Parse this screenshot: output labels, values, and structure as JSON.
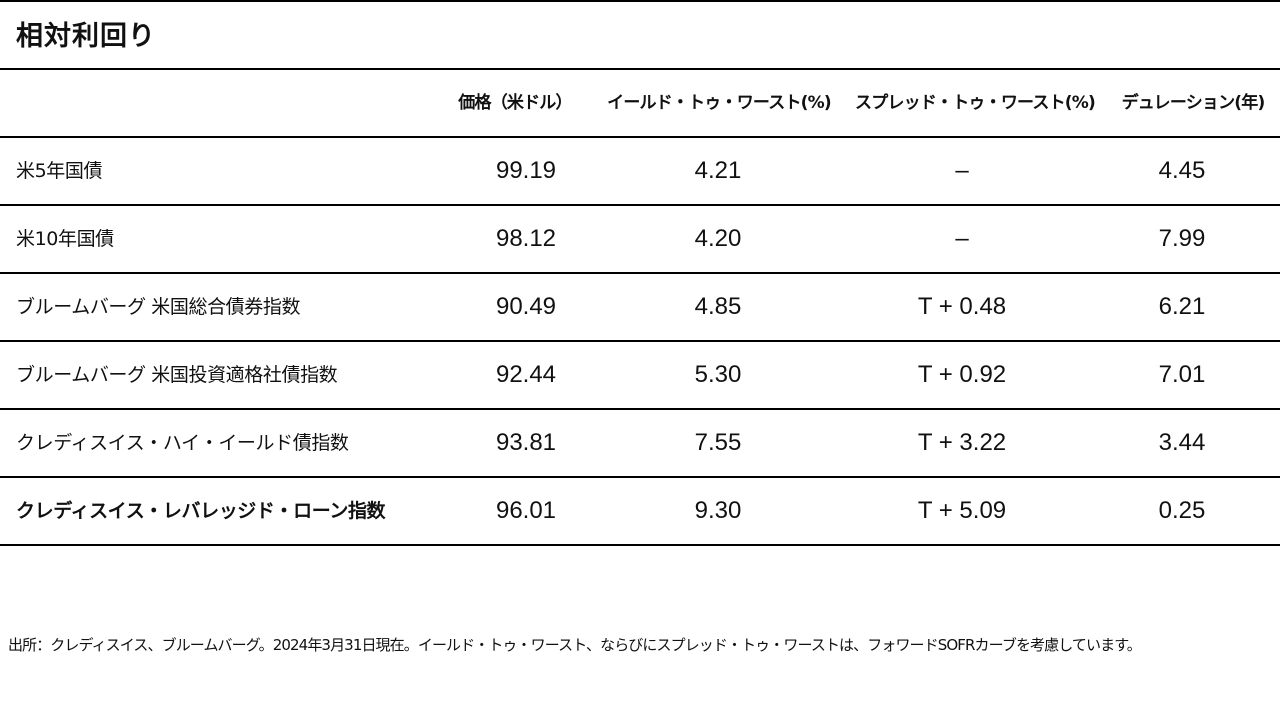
{
  "title": "相対利回り",
  "table": {
    "columns": [
      "",
      "価格（米ドル）",
      "イールド・トゥ・ワースト(%)",
      "スプレッド・トゥ・ワースト(%)",
      "デュレーション(年)"
    ],
    "rows": [
      {
        "name": "米5年国債",
        "price": "99.19",
        "ytw": "4.21",
        "stw": "–",
        "duration": "4.45"
      },
      {
        "name": "米10年国債",
        "price": "98.12",
        "ytw": "4.20",
        "stw": "–",
        "duration": "7.99"
      },
      {
        "name": "ブルームバーグ 米国総合債券指数",
        "price": "90.49",
        "ytw": "4.85",
        "stw": "T + 0.48",
        "duration": "6.21"
      },
      {
        "name": "ブルームバーグ 米国投資適格社債指数",
        "price": "92.44",
        "ytw": "5.30",
        "stw": "T + 0.92",
        "duration": "7.01"
      },
      {
        "name": "クレディスイス・ハイ・イールド債指数",
        "price": "93.81",
        "ytw": "7.55",
        "stw": "T + 3.22",
        "duration": "3.44"
      },
      {
        "name": "クレディスイス・レバレッジド・ローン指数",
        "price": "96.01",
        "ytw": "9.30",
        "stw": "T + 5.09",
        "duration": "0.25"
      }
    ]
  },
  "footnote": "出所：クレディスイス、ブルームバーグ。2024年3月31日現在。イールド・トゥ・ワースト、ならびにスプレッド・トゥ・ワーストは、フォワードSOFRカーブを考慮しています。"
}
